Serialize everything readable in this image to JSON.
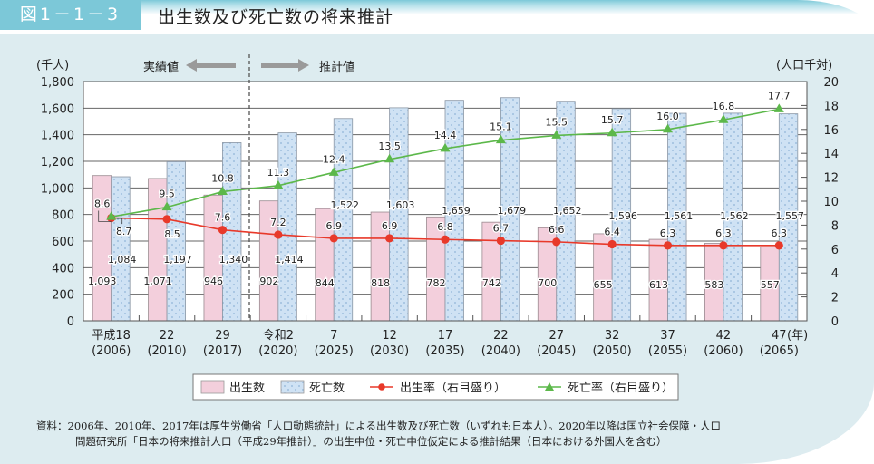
{
  "header": {
    "figure_label": "図1－1－3",
    "title": "出生数及び死亡数の将来推計"
  },
  "annotations": {
    "actual_label": "実績値",
    "projected_label": "推計値",
    "divider": "between 2017 and 2020"
  },
  "source": {
    "line1": "資料：2006年、2010年、2017年は厚生労働省「人口動態統計」による出生数及び死亡数（いずれも日本人）。2020年以降は国立社会保障・人口",
    "line2": "問題研究所「日本の将来推計人口（平成29年推計）」の出生中位・死亡中位仮定による推計結果（日本における外国人を含む）"
  },
  "colors": {
    "births_bar": "#f3cfdc",
    "deaths_bar": "#cfe2f4",
    "birth_rate_line": "#e8392a",
    "death_rate_line": "#5cb84a",
    "accent": "#7cc8d8",
    "panel_bg": "#ddecf0"
  },
  "chart_data": {
    "type": "bar+line",
    "title": "出生数及び死亡数の将来推計",
    "categories": [
      {
        "era": "平成18",
        "year": "(2006)"
      },
      {
        "era": "22",
        "year": "(2010)"
      },
      {
        "era": "29",
        "year": "(2017)"
      },
      {
        "era": "令和2",
        "year": "(2020)"
      },
      {
        "era": "7",
        "year": "(2025)"
      },
      {
        "era": "12",
        "year": "(2030)"
      },
      {
        "era": "17",
        "year": "(2035)"
      },
      {
        "era": "22",
        "year": "(2040)"
      },
      {
        "era": "27",
        "year": "(2045)"
      },
      {
        "era": "32",
        "year": "(2050)"
      },
      {
        "era": "37",
        "year": "(2055)"
      },
      {
        "era": "42",
        "year": "(2060)"
      },
      {
        "era": "47",
        "year": "(2065)"
      }
    ],
    "x_unit": "(年)",
    "y_left": {
      "label": "(千人)",
      "range": [
        0,
        1800
      ],
      "ticks": [
        "0",
        "200",
        "400",
        "600",
        "800",
        "1,000",
        "1,200",
        "1,400",
        "1,600",
        "1,800"
      ]
    },
    "y_right": {
      "label": "(人口千対)",
      "range": [
        0,
        20
      ],
      "ticks": [
        "0",
        "2",
        "4",
        "6",
        "8",
        "10",
        "12",
        "14",
        "16",
        "18",
        "20"
      ]
    },
    "grid": true,
    "series": [
      {
        "name": "出生数",
        "type": "bar",
        "axis": "left",
        "values": [
          1093,
          1071,
          946,
          902,
          844,
          818,
          782,
          742,
          700,
          655,
          613,
          583,
          557
        ],
        "labels": [
          "1,093",
          "1,071",
          "946",
          "902",
          "844",
          "818",
          "782",
          "742",
          "700",
          "655",
          "613",
          "583",
          "557"
        ]
      },
      {
        "name": "死亡数",
        "type": "bar",
        "axis": "left",
        "values": [
          1084,
          1197,
          1340,
          1414,
          1522,
          1603,
          1659,
          1679,
          1652,
          1596,
          1561,
          1562,
          1557
        ],
        "labels": [
          "1,084",
          "1,197",
          "1,340",
          "1,414",
          "1,522",
          "1,603",
          "1,659",
          "1,679",
          "1,652",
          "1,596",
          "1,561",
          "1,562",
          "1,557"
        ]
      },
      {
        "name": "出生率（右目盛り）",
        "type": "line",
        "axis": "right",
        "values": [
          8.6,
          8.5,
          7.6,
          7.2,
          6.9,
          6.9,
          6.8,
          6.7,
          6.6,
          6.4,
          6.3,
          6.3,
          6.3
        ],
        "labels": [
          "8.6",
          "8.5",
          "7.6",
          "7.2",
          "6.9",
          "6.9",
          "6.8",
          "6.7",
          "6.6",
          "6.4",
          "6.3",
          "6.3",
          "6.3"
        ]
      },
      {
        "name": "死亡率（右目盛り）",
        "type": "line",
        "axis": "right",
        "values": [
          8.7,
          9.5,
          10.8,
          11.3,
          12.4,
          13.5,
          14.4,
          15.1,
          15.5,
          15.7,
          16.0,
          16.8,
          17.7
        ],
        "labels": [
          "8.7",
          "9.5",
          "10.8",
          "11.3",
          "12.4",
          "13.5",
          "14.4",
          "15.1",
          "15.5",
          "15.7",
          "16.0",
          "16.8",
          "17.7"
        ]
      }
    ],
    "legend": {
      "position": "bottom",
      "items": [
        "出生数",
        "死亡数",
        "出生率（右目盛り）",
        "死亡率（右目盛り）"
      ]
    }
  }
}
